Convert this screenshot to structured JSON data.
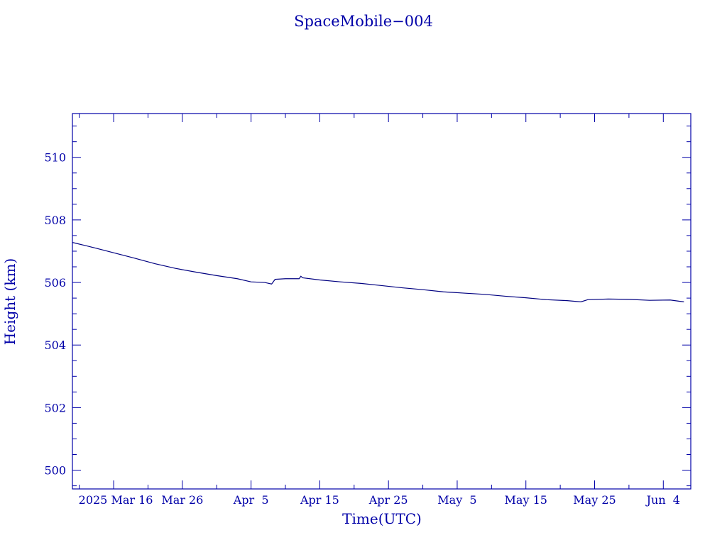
{
  "chart_data": {
    "type": "line",
    "title": "SpaceMobile−004",
    "xlabel": "Time(UTC)",
    "ylabel": "Height (km)",
    "xlim": [
      "2025-03-10",
      "2025-06-08"
    ],
    "ylim": [
      499.4,
      511.4
    ],
    "grid": false,
    "x_ticks": [
      {
        "date": "2025-03-16",
        "label": "2025 Mar 16"
      },
      {
        "date": "2025-03-26",
        "label": "Mar 26"
      },
      {
        "date": "2025-04-05",
        "label": "Apr  5"
      },
      {
        "date": "2025-04-15",
        "label": "Apr 15"
      },
      {
        "date": "2025-04-25",
        "label": "Apr 25"
      },
      {
        "date": "2025-05-05",
        "label": "May  5"
      },
      {
        "date": "2025-05-15",
        "label": "May 15"
      },
      {
        "date": "2025-05-25",
        "label": "May 25"
      },
      {
        "date": "2025-06-04",
        "label": "Jun  4"
      }
    ],
    "y_ticks": [
      500,
      502,
      504,
      506,
      508,
      510
    ],
    "series": [
      {
        "color": "#000080",
        "points": [
          [
            "2025-03-10",
            507.28
          ],
          [
            "2025-03-13",
            507.12
          ],
          [
            "2025-03-16",
            506.95
          ],
          [
            "2025-03-19",
            506.78
          ],
          [
            "2025-03-22",
            506.6
          ],
          [
            "2025-03-25",
            506.45
          ],
          [
            "2025-03-28",
            506.33
          ],
          [
            "2025-03-31",
            506.22
          ],
          [
            "2025-04-03",
            506.12
          ],
          [
            "2025-04-05",
            506.02
          ],
          [
            "2025-04-07",
            506.0
          ],
          [
            "2025-04-08",
            505.95
          ],
          [
            "2025-04-08T12",
            506.1
          ],
          [
            "2025-04-10",
            506.12
          ],
          [
            "2025-04-12",
            506.12
          ],
          [
            "2025-04-12T06",
            506.2
          ],
          [
            "2025-04-12T12",
            506.15
          ],
          [
            "2025-04-15",
            506.08
          ],
          [
            "2025-04-18",
            506.02
          ],
          [
            "2025-04-21",
            505.97
          ],
          [
            "2025-04-24",
            505.9
          ],
          [
            "2025-04-27",
            505.83
          ],
          [
            "2025-04-30",
            505.77
          ],
          [
            "2025-05-03",
            505.7
          ],
          [
            "2025-05-06",
            505.66
          ],
          [
            "2025-05-09",
            505.62
          ],
          [
            "2025-05-12",
            505.56
          ],
          [
            "2025-05-15",
            505.51
          ],
          [
            "2025-05-18",
            505.45
          ],
          [
            "2025-05-21",
            505.42
          ],
          [
            "2025-05-23",
            505.38
          ],
          [
            "2025-05-24",
            505.45
          ],
          [
            "2025-05-27",
            505.47
          ],
          [
            "2025-05-30",
            505.46
          ],
          [
            "2025-06-02",
            505.43
          ],
          [
            "2025-06-05",
            505.44
          ],
          [
            "2025-06-07",
            505.38
          ]
        ]
      }
    ]
  }
}
